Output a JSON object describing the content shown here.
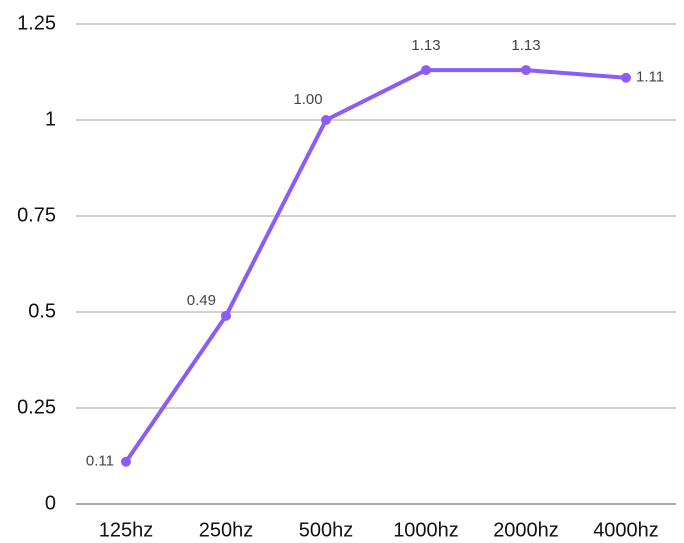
{
  "chart_data": {
    "type": "line",
    "title": "",
    "xlabel": "",
    "ylabel": "",
    "categories": [
      "125hz",
      "250hz",
      "500hz",
      "1000hz",
      "2000hz",
      "4000hz"
    ],
    "series": [
      {
        "values": [
          0.11,
          0.49,
          1.0,
          1.13,
          1.13,
          1.11
        ],
        "data_labels": [
          "0.11",
          "0.49",
          "1.00",
          "1.13",
          "1.13",
          "1.11"
        ],
        "color": "#8b5cf6"
      }
    ],
    "ylim": [
      0,
      1.25
    ],
    "y_ticks": [
      0,
      0.25,
      0.5,
      0.75,
      1,
      1.25
    ],
    "y_tick_labels": [
      "0",
      "0.25",
      "0.5",
      "0.75",
      "1",
      "1.25"
    ],
    "grid": true,
    "legend": "none"
  }
}
